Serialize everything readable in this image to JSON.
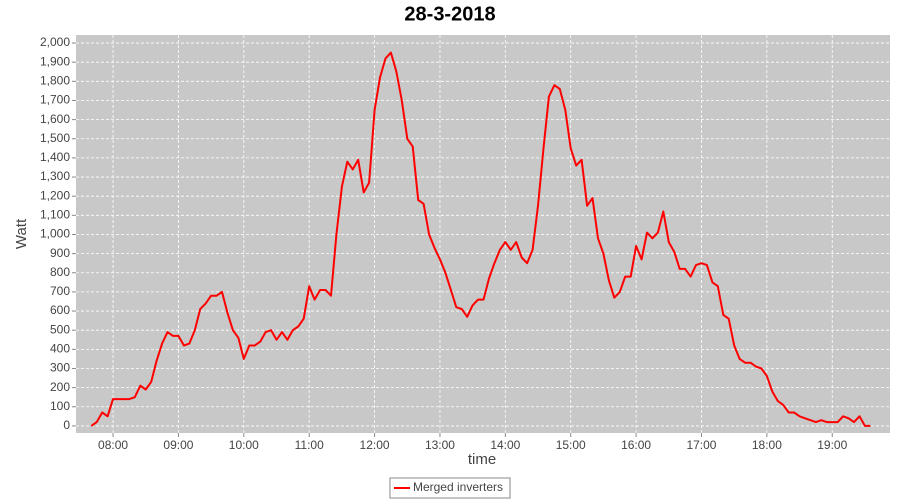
{
  "chart_data": {
    "type": "line",
    "title": "28-3-2018",
    "x_label": "time",
    "y_label": "Watt",
    "xlim": [
      "07:26",
      "19:53"
    ],
    "xticks": [
      "08:00",
      "09:00",
      "10:00",
      "11:00",
      "12:00",
      "13:00",
      "14:00",
      "15:00",
      "16:00",
      "17:00",
      "18:00",
      "19:00"
    ],
    "ylim": [
      -37,
      2042
    ],
    "yticks": [
      0,
      100,
      200,
      300,
      400,
      500,
      600,
      700,
      800,
      900,
      {
        "value": 1000,
        "label": "1,000"
      },
      {
        "value": 1100,
        "label": "1,100"
      },
      {
        "value": 1200,
        "label": "1,200"
      },
      {
        "value": 1300,
        "label": "1,300"
      },
      {
        "value": 1400,
        "label": "1,400"
      },
      {
        "value": 1500,
        "label": "1,500"
      },
      {
        "value": 1600,
        "label": "1,600"
      },
      {
        "value": 1700,
        "label": "1,700"
      },
      {
        "value": 1800,
        "label": "1,800"
      },
      {
        "value": 1900,
        "label": "1,900"
      },
      {
        "value": 2000,
        "label": "2,000"
      }
    ],
    "grid": true,
    "legend": "bottom",
    "x": [
      "07:40",
      "07:45",
      "07:50",
      "07:55",
      "08:00",
      "08:05",
      "08:10",
      "08:15",
      "08:20",
      "08:25",
      "08:30",
      "08:35",
      "08:40",
      "08:45",
      "08:50",
      "08:55",
      "09:00",
      "09:05",
      "09:10",
      "09:15",
      "09:20",
      "09:25",
      "09:30",
      "09:35",
      "09:40",
      "09:45",
      "09:50",
      "09:55",
      "10:00",
      "10:05",
      "10:10",
      "10:15",
      "10:20",
      "10:25",
      "10:30",
      "10:35",
      "10:40",
      "10:45",
      "10:50",
      "10:55",
      "11:00",
      "11:05",
      "11:10",
      "11:15",
      "11:20",
      "11:25",
      "11:30",
      "11:35",
      "11:40",
      "11:45",
      "11:50",
      "11:55",
      "12:00",
      "12:05",
      "12:10",
      "12:15",
      "12:20",
      "12:25",
      "12:30",
      "12:35",
      "12:40",
      "12:45",
      "12:50",
      "12:55",
      "13:00",
      "13:05",
      "13:10",
      "13:15",
      "13:20",
      "13:25",
      "13:30",
      "13:35",
      "13:40",
      "13:45",
      "13:50",
      "13:55",
      "14:00",
      "14:05",
      "14:10",
      "14:15",
      "14:20",
      "14:25",
      "14:30",
      "14:35",
      "14:40",
      "14:45",
      "14:50",
      "14:55",
      "15:00",
      "15:05",
      "15:10",
      "15:15",
      "15:20",
      "15:25",
      "15:30",
      "15:35",
      "15:40",
      "15:45",
      "15:50",
      "15:55",
      "16:00",
      "16:05",
      "16:10",
      "16:15",
      "16:20",
      "16:25",
      "16:30",
      "16:35",
      "16:40",
      "16:45",
      "16:50",
      "16:55",
      "17:00",
      "17:05",
      "17:10",
      "17:15",
      "17:20",
      "17:25",
      "17:30",
      "17:35",
      "17:40",
      "17:45",
      "17:50",
      "17:55",
      "18:00",
      "18:05",
      "18:10",
      "18:15",
      "18:20",
      "18:25",
      "18:30",
      "18:35",
      "18:40",
      "18:45",
      "18:50",
      "18:55",
      "19:00",
      "19:05",
      "19:10",
      "19:15",
      "19:20",
      "19:25",
      "19:30",
      "19:35"
    ],
    "series": [
      {
        "name": "Merged inverters",
        "color": "#ff0000",
        "values": [
          0,
          20,
          70,
          50,
          140,
          140,
          140,
          140,
          150,
          210,
          190,
          230,
          340,
          430,
          490,
          470,
          470,
          420,
          430,
          500,
          610,
          640,
          680,
          680,
          700,
          590,
          500,
          460,
          350,
          420,
          420,
          440,
          490,
          500,
          450,
          490,
          450,
          500,
          520,
          560,
          730,
          660,
          710,
          710,
          680,
          1000,
          1250,
          1380,
          1340,
          1390,
          1220,
          1270,
          1650,
          1820,
          1920,
          1950,
          1850,
          1700,
          1500,
          1460,
          1180,
          1160,
          1000,
          930,
          870,
          800,
          710,
          620,
          610,
          570,
          630,
          660,
          660,
          770,
          850,
          920,
          960,
          920,
          960,
          880,
          850,
          920,
          1150,
          1450,
          1720,
          1780,
          1760,
          1650,
          1450,
          1360,
          1390,
          1150,
          1190,
          980,
          900,
          760,
          670,
          700,
          780,
          780,
          940,
          870,
          1010,
          980,
          1010,
          1120,
          960,
          910,
          820,
          820,
          780,
          840,
          850,
          840,
          750,
          730,
          580,
          560,
          420,
          350,
          330,
          330,
          310,
          300,
          260,
          180,
          130,
          110,
          70,
          70,
          50,
          40,
          30,
          20,
          30,
          20,
          20,
          20,
          50,
          40,
          20,
          50,
          0,
          0
        ]
      }
    ]
  }
}
